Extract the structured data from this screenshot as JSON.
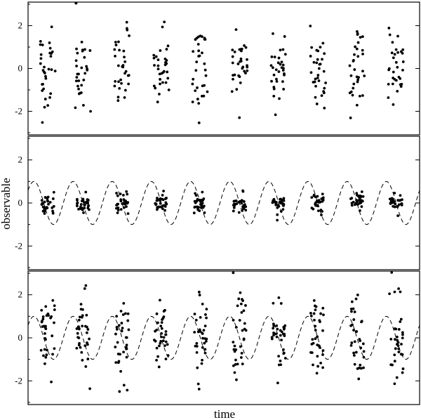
{
  "chart_data": {
    "type": "scatter",
    "xlabel": "time",
    "ylabel": "observable",
    "xlim": [
      0,
      10
    ],
    "ylim": [
      -3.1,
      3.1
    ],
    "yticks": [
      -2,
      0,
      2
    ],
    "clusters": [
      0.5,
      1.4,
      2.4,
      3.4,
      4.4,
      5.4,
      6.4,
      7.4,
      8.4,
      9.4
    ],
    "panels": [
      {
        "model_curve": "none",
        "spread": 1.0,
        "jitter": 0.2,
        "points_per_cluster": 32,
        "seed": 11
      },
      {
        "model_curve": "sin(2*pi*(t-0.9))",
        "amplitude": 1.0,
        "period": 1.0,
        "spread": 0.22,
        "jitter": 0.16,
        "points_per_cluster": 30,
        "seed": 23
      },
      {
        "model_curve": "sin(2*pi*(t-0.9))",
        "amplitude": 1.0,
        "period": 1.0,
        "spread": 1.0,
        "jitter": 0.18,
        "points_per_cluster": 34,
        "seed": 37
      }
    ]
  }
}
